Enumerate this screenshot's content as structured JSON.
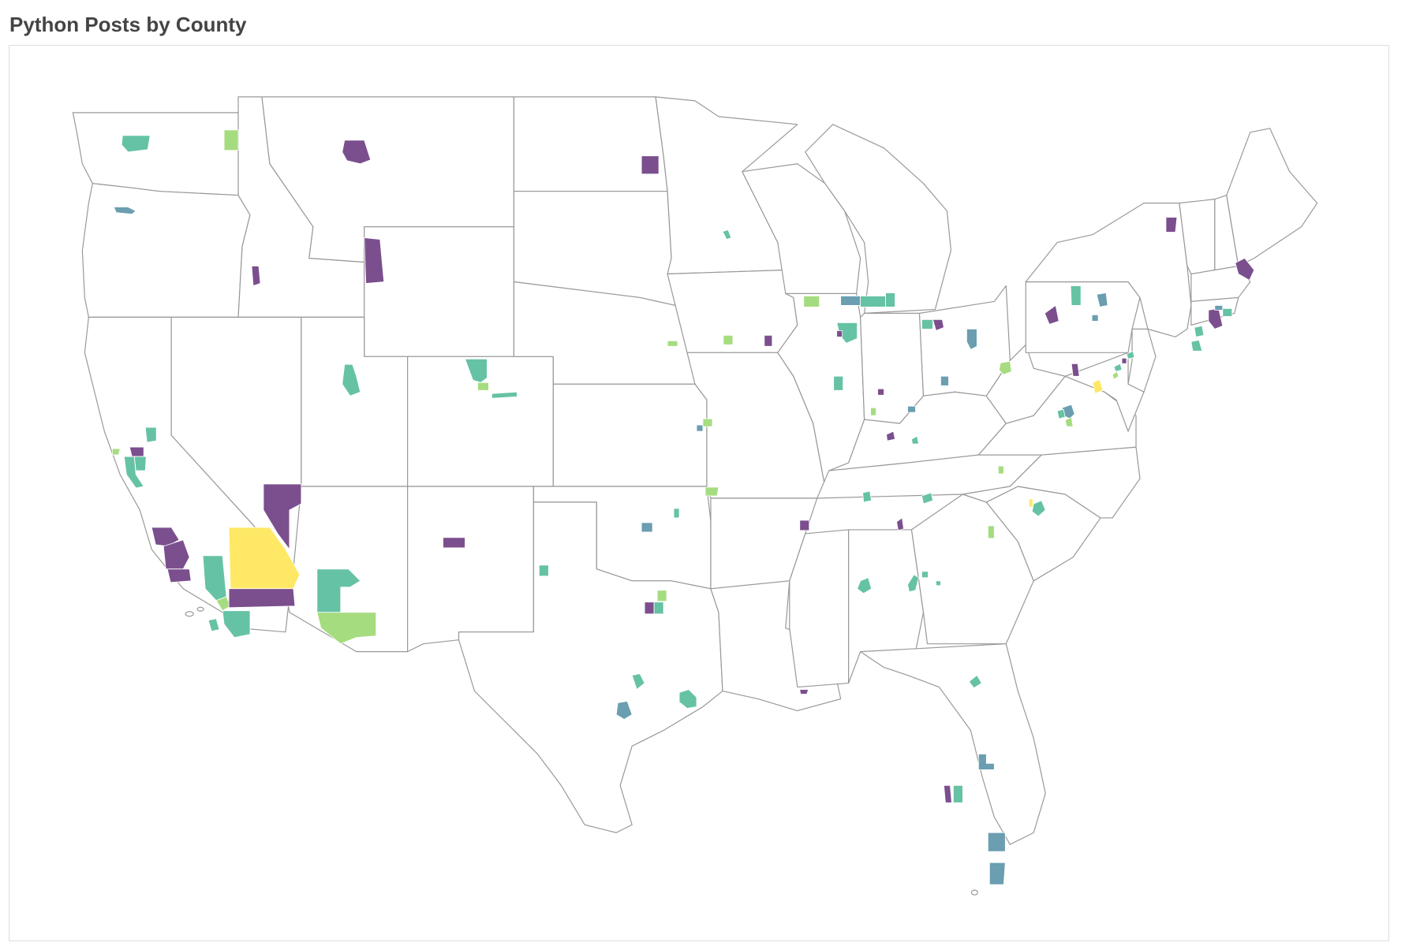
{
  "title": "Python Posts by County",
  "colors": {
    "purple": "#7b4f8e",
    "steel": "#6a9eb0",
    "teal": "#66c2a5",
    "green": "#a6dc80",
    "yellow": "#ffe866",
    "state_fill": "#ffffff",
    "state_stroke": "#999999"
  },
  "map": {
    "region": "Contiguous United States",
    "unit": "counties",
    "color_scale": [
      "purple",
      "steel",
      "teal",
      "green",
      "yellow"
    ],
    "legend": "none"
  }
}
